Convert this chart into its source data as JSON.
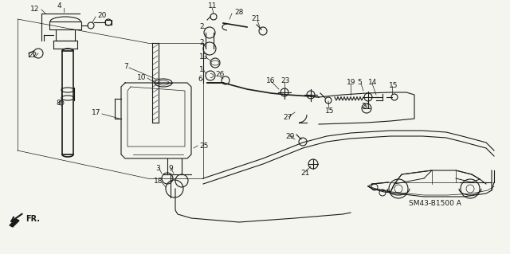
{
  "bg_color": "#f5f5f0",
  "diagram_code": "SM43-B1500 A",
  "lw": 0.8,
  "c": "#1a1a1a"
}
